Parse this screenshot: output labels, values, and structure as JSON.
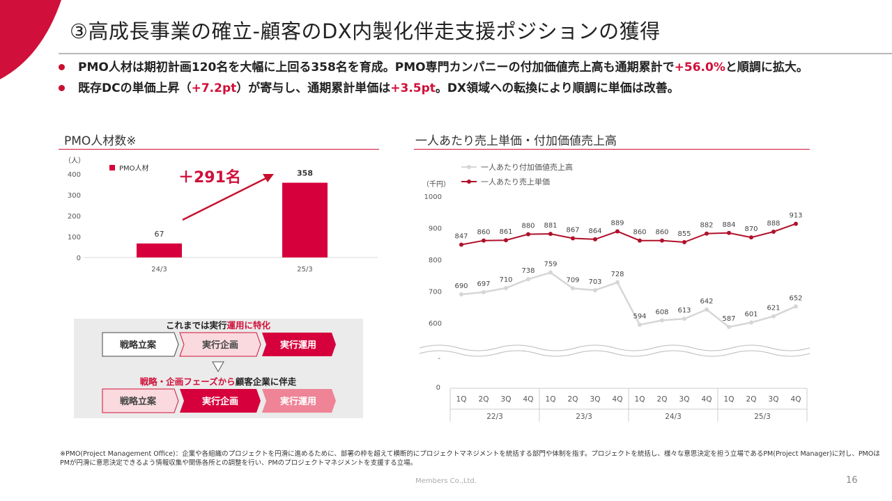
{
  "slide": {
    "title": "③高成長事業の確立-顧客のDX内製化伴走支援ポジションの獲得",
    "bullets": [
      {
        "pre": "PMO人材は期初計画120名を大幅に上回る358名を育成。PMO専門カンパニーの付加価値売上高も通期累計で",
        "hl1": "+56.0%",
        "mid": "と順調に拡大。",
        "hl2": "",
        "post": ""
      },
      {
        "pre": "既存DCの単価上昇（",
        "hl1": "+7.2pt",
        "mid": "）が寄与し、通期累計単価は",
        "hl2": "+3.5pt",
        "post": "。DX領域への転換により順調に単価は改善。"
      }
    ],
    "footnote": "※PMO(Project Management Office)：企業や各組織のプロジェクトを円滑に進めるために、部署の枠を超えて横断的にプロジェクトマネジメントを統括する部門や体制を指す。プロジェクトを統括し、様々な意思決定を担う立場であるPM(Project Manager)に対し、PMOはPMが円滑に意思決定できるよう情報収集や関係各所との調整を行い、PMのプロジェクトマネジメントを支援する立場。",
    "company": "Members Co.,Ltd.",
    "page_number": "16",
    "colors": {
      "accent": "#d0103a",
      "bar": "#d6003c",
      "gray_line": "#d6d6d6",
      "red_line": "#b0102a"
    }
  },
  "diagram": {
    "top_caption_pre": "これまでは実行",
    "top_caption_hl": "運用に特化",
    "bottom_caption_hl": "戦略・企画フェーズから",
    "bottom_caption_post": "顧客企業に伴走",
    "row1": [
      "戦略立案",
      "実行企画",
      "実行運用"
    ],
    "row2": [
      "戦略立案",
      "実行企画",
      "実行運用"
    ]
  },
  "chart_data": [
    {
      "type": "bar",
      "title": "PMO人材数※",
      "unit": "（人）",
      "categories": [
        "24/3",
        "25/3"
      ],
      "series": [
        {
          "name": "PMO人材",
          "values": [
            67,
            358
          ]
        }
      ],
      "ylim": [
        0,
        400
      ],
      "yticks": [
        "0",
        "100",
        "200",
        "300",
        "400"
      ],
      "annotation": "＋291名",
      "grid": false,
      "legend": "top-left"
    },
    {
      "type": "line",
      "title": "一人あたり売上単価・付加価値売上高",
      "unit": "（千円）",
      "quarters": [
        "1Q",
        "2Q",
        "3Q",
        "4Q",
        "1Q",
        "2Q",
        "3Q",
        "4Q",
        "1Q",
        "2Q",
        "3Q",
        "4Q",
        "1Q",
        "2Q",
        "3Q",
        "4Q"
      ],
      "years": [
        "22/3",
        "23/3",
        "24/3",
        "25/3"
      ],
      "series": [
        {
          "name": "一人あたり付加価値売上高",
          "values": [
            690,
            697,
            710,
            738,
            759,
            709,
            703,
            728,
            594,
            608,
            613,
            642,
            587,
            601,
            621,
            652
          ]
        },
        {
          "name": "一人あたり売上単価",
          "values": [
            847,
            860,
            861,
            880,
            881,
            867,
            864,
            889,
            860,
            860,
            855,
            882,
            884,
            870,
            888,
            913
          ]
        }
      ],
      "ylim": [
        550,
        1000
      ],
      "yticks": [
        "600",
        "700",
        "800",
        "900",
        "1000"
      ],
      "axis_break_tick": "-",
      "axis_zero": "0",
      "grid": false,
      "legend": "top-left"
    }
  ]
}
